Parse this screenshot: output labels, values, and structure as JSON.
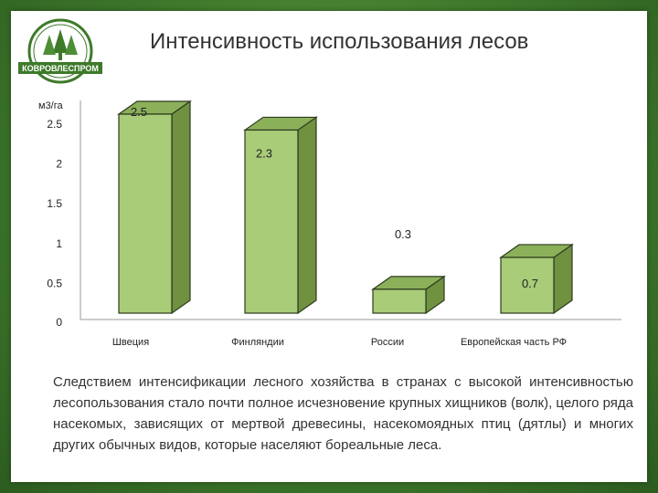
{
  "title": "Интенсивность использования лесов",
  "logo": {
    "text": "КОВРОВЛЕСПРОМ",
    "icon": "forest-logo-icon"
  },
  "colors": {
    "bar_front": "#a8cc78",
    "bar_side": "#6f9140",
    "bar_top": "#8bb05a",
    "bar_stroke": "#2e3a1e",
    "background": "#4a8a34"
  },
  "chart_data": {
    "type": "bar",
    "ylabel": "м3/га",
    "ylim": [
      0,
      2.5
    ],
    "yticks": [
      "0",
      "0.5",
      "1",
      "1.5",
      "2",
      "2.5"
    ],
    "categories": [
      "Швеция",
      "Финляндии",
      "России",
      "Европейская часть РФ"
    ],
    "values": [
      2.5,
      2.3,
      0.3,
      0.7
    ],
    "data_labels": [
      "2.5",
      "2.3",
      "0.3",
      "0.7"
    ],
    "grid": false
  },
  "note": "Следствием интенсификации лесного хозяйства в странах с высокой интенсивностью лесопользования стало почти полное исчезновение крупных хищников (волк), целого ряда насекомых, зависящих от мертвой древесины, насекомоядных птиц (дятлы) и многих других обычных видов, которые населяют бореальные леса."
}
